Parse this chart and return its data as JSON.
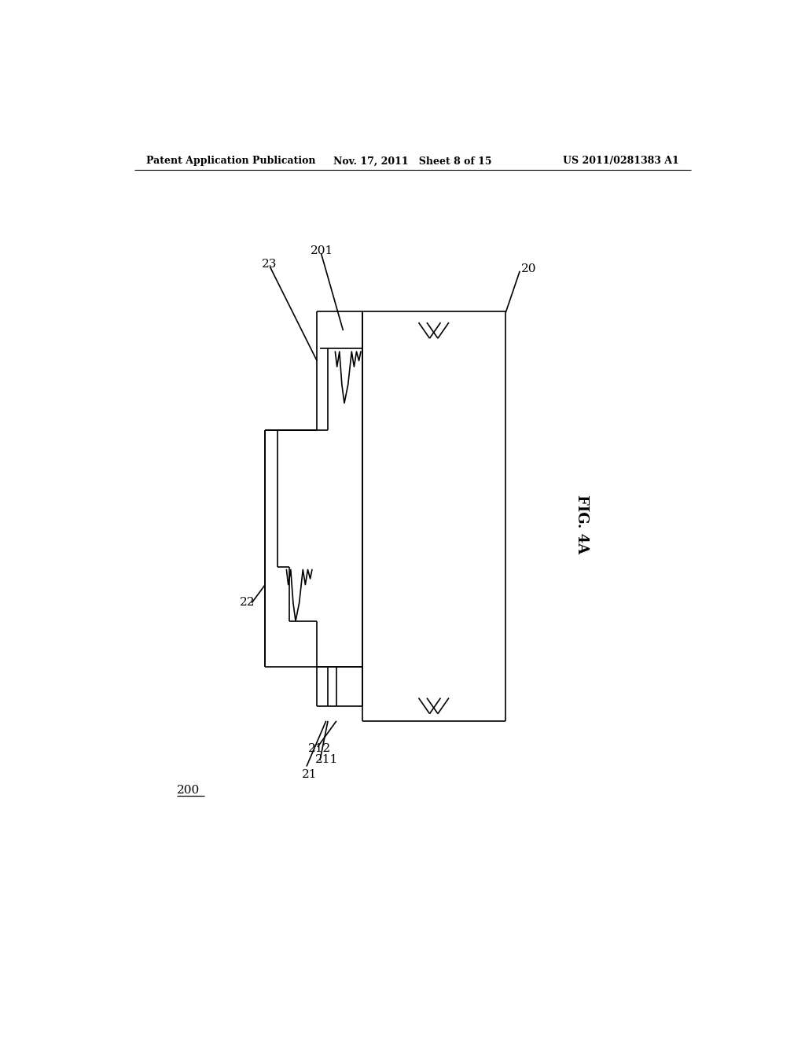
{
  "header_left": "Patent Application Publication",
  "header_mid": "Nov. 17, 2011   Sheet 8 of 15",
  "header_right": "US 2011/0281383 A1",
  "fig_label": "FIG. 4A",
  "background": "#ffffff",
  "line_color": "#000000",
  "lw": 1.2
}
